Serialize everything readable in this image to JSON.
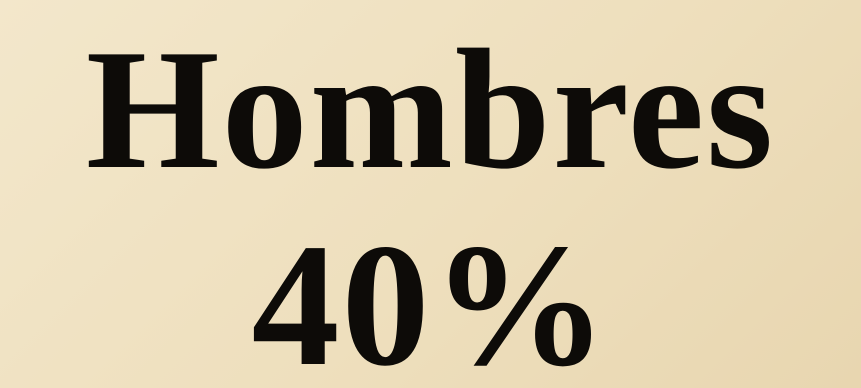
{
  "slide": {
    "label": "Hombres",
    "value": "40%",
    "percent": 40,
    "text_color": "#0d0b08",
    "background_color": "#f0e2c2"
  }
}
